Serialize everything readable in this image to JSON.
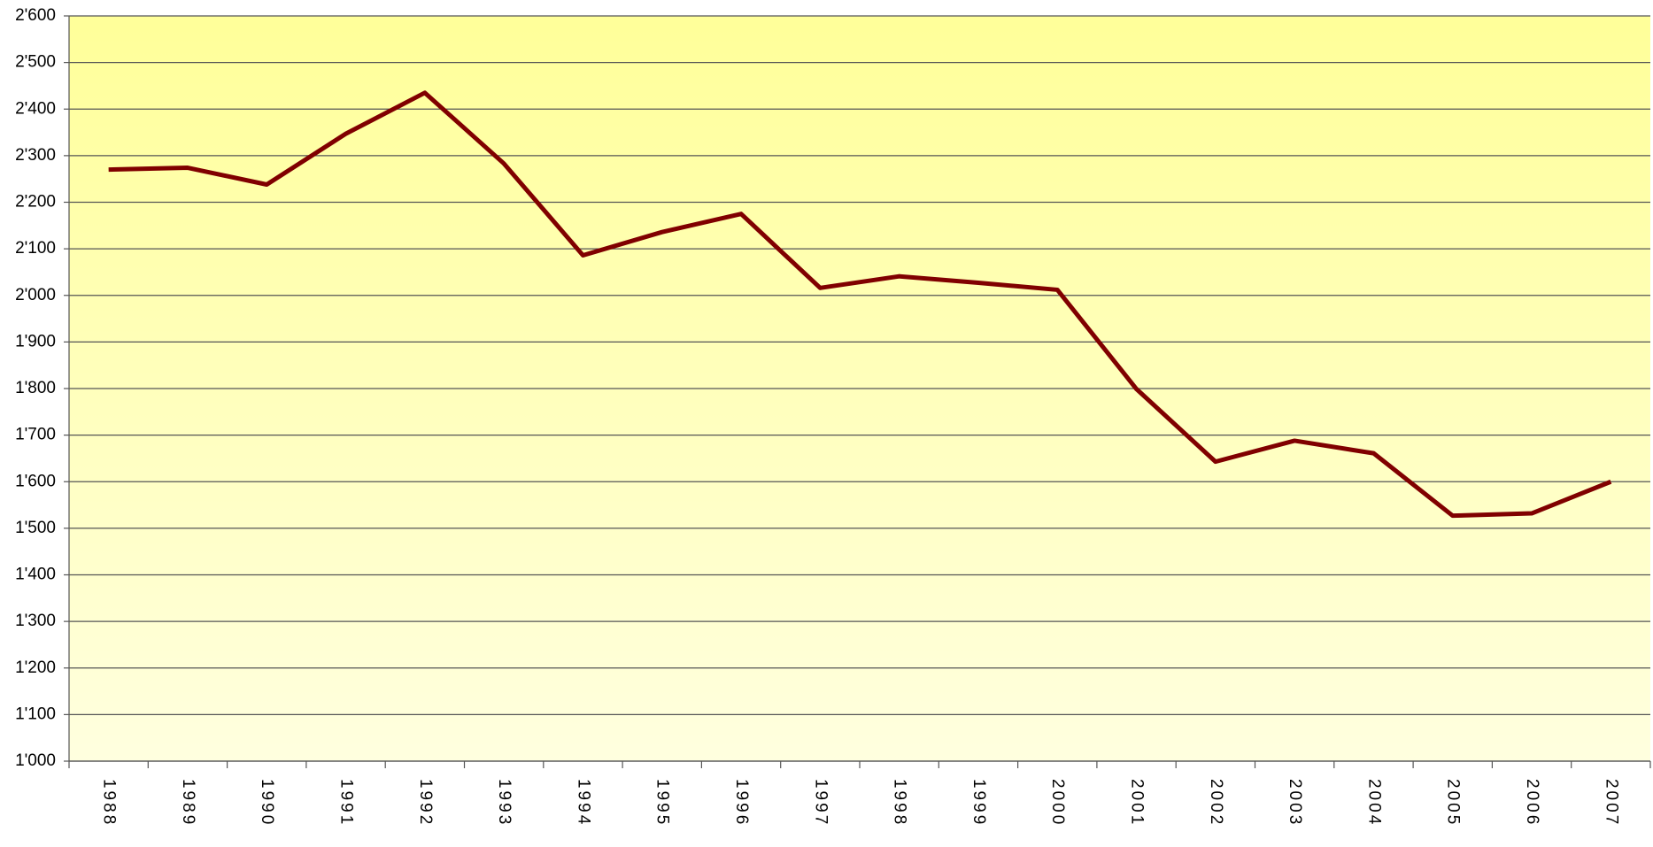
{
  "chart_data": {
    "type": "line",
    "categories": [
      "1988",
      "1989",
      "1990",
      "1991",
      "1992",
      "1993",
      "1994",
      "1995",
      "1996",
      "1997",
      "1998",
      "1999",
      "2000",
      "2001",
      "2002",
      "2003",
      "2004",
      "2005",
      "2006",
      "2007"
    ],
    "series": [
      {
        "color": "#800000",
        "values": [
          2270,
          2274,
          2238,
          2347,
          2435,
          2283,
          2086,
          2136,
          2175,
          2016,
          2041,
          2027,
          2012,
          1799,
          1643,
          1688,
          1661,
          1527,
          1532,
          1600
        ]
      }
    ],
    "ylim": [
      1000,
      2600
    ],
    "yticks": [
      {
        "value": 1000,
        "label": "1'000"
      },
      {
        "value": 1100,
        "label": "1'100"
      },
      {
        "value": 1200,
        "label": "1'200"
      },
      {
        "value": 1300,
        "label": "1'300"
      },
      {
        "value": 1400,
        "label": "1'400"
      },
      {
        "value": 1500,
        "label": "1'500"
      },
      {
        "value": 1600,
        "label": "1'600"
      },
      {
        "value": 1700,
        "label": "1'700"
      },
      {
        "value": 1800,
        "label": "1'800"
      },
      {
        "value": 1900,
        "label": "1'900"
      },
      {
        "value": 2000,
        "label": "2'000"
      },
      {
        "value": 2100,
        "label": "2'100"
      },
      {
        "value": 2200,
        "label": "2'200"
      },
      {
        "value": 2300,
        "label": "2'300"
      },
      {
        "value": 2400,
        "label": "2'400"
      },
      {
        "value": 2500,
        "label": "2'500"
      },
      {
        "value": 2600,
        "label": "2'600"
      }
    ],
    "grid": true
  }
}
